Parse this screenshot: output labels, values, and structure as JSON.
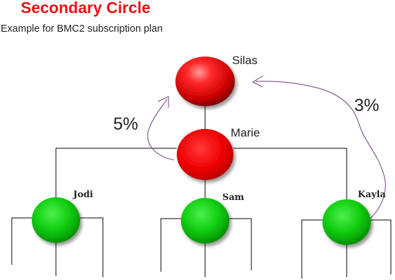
{
  "title": "Secondary Circle",
  "subtitle": "Example for BMC2 subscription plan",
  "nodes": {
    "silas": {
      "label": "Silas"
    },
    "marie": {
      "label": "Marie"
    },
    "jodi": {
      "label": "Jodi"
    },
    "sam": {
      "label": "Sam"
    },
    "kayla": {
      "label": "Kayla"
    }
  },
  "commissions": {
    "left": "5%",
    "right": "3%"
  },
  "colors": {
    "title": "#ee1111",
    "upline_node": "#e00000",
    "downline_node": "#0cc40c",
    "connector": "#000000",
    "arrow": "#6a3a7a"
  }
}
